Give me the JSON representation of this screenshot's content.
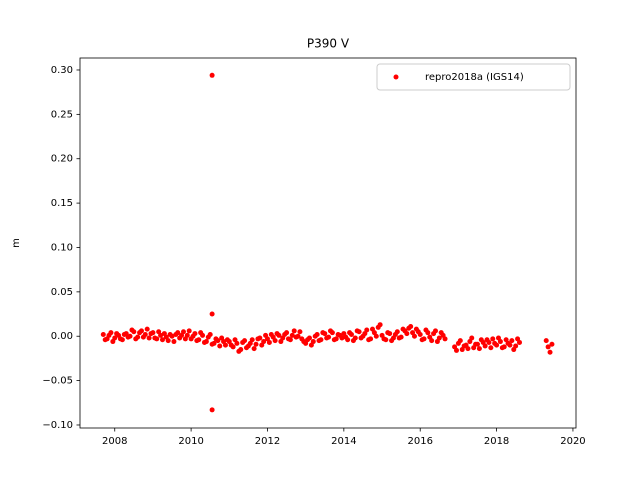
{
  "chart_data": {
    "type": "scatter",
    "title": "P390 V",
    "ylabel": "m",
    "xlim": [
      2007.09,
      2020.08
    ],
    "ylim": [
      -0.1034,
      0.3135
    ],
    "xticks": [
      2008,
      2010,
      2012,
      2014,
      2016,
      2018,
      2020
    ],
    "yticks": [
      {
        "value": -0.1,
        "label": "−0.10"
      },
      {
        "value": -0.05,
        "label": "−0.05"
      },
      {
        "value": 0,
        "label": "0.00"
      },
      {
        "value": 0.05,
        "label": "0.05"
      },
      {
        "value": 0.1,
        "label": "0.10"
      },
      {
        "value": 0.15,
        "label": "0.15"
      },
      {
        "value": 0.2,
        "label": "0.20"
      },
      {
        "value": 0.25,
        "label": "0.25"
      },
      {
        "value": 0.3,
        "label": "0.30"
      }
    ],
    "grid": false,
    "legend": "upper right",
    "series": [
      {
        "name": "repro2018a (IGS14)",
        "color": "#ff0000",
        "x": [
          2007.7,
          2007.8,
          2007.9,
          2008.0,
          2008.1,
          2008.2,
          2008.3,
          2008.4,
          2008.5,
          2008.6,
          2008.7,
          2008.8,
          2008.9,
          2009.0,
          2009.1,
          2009.2,
          2009.3,
          2009.4,
          2009.5,
          2009.6,
          2009.7,
          2009.8,
          2009.9,
          2010.0,
          2010.1,
          2010.2,
          2010.3,
          2010.4,
          2010.5,
          2010.6,
          2010.7,
          2010.8,
          2010.9,
          2011.0,
          2011.1,
          2011.2,
          2011.3,
          2011.4,
          2011.5,
          2011.6,
          2011.7,
          2011.8,
          2011.9,
          2012.0,
          2012.1,
          2012.2,
          2012.3,
          2012.4,
          2012.5,
          2012.6,
          2012.7,
          2012.8,
          2012.9,
          2013.0,
          2013.1,
          2013.2,
          2013.3,
          2013.4,
          2013.5,
          2013.6,
          2013.7,
          2013.8,
          2013.9,
          2014.0,
          2014.1,
          2014.2,
          2014.3,
          2014.4,
          2014.5,
          2014.6,
          2014.7,
          2014.8,
          2014.9,
          2015.0,
          2015.1,
          2015.2,
          2015.3,
          2015.4,
          2015.5,
          2015.6,
          2015.7,
          2015.8,
          2015.9,
          2016.0,
          2016.1,
          2016.2,
          2016.3,
          2016.4,
          2016.5,
          2016.6,
          2016.9,
          2017.0,
          2017.1,
          2017.2,
          2017.3,
          2017.4,
          2017.5,
          2017.6,
          2017.7,
          2017.8,
          2017.9,
          2018.0,
          2018.1,
          2018.2,
          2018.3,
          2018.4,
          2018.5,
          2018.6,
          2019.3,
          2019.35,
          2019.4,
          2019.45,
          2010.55,
          2010.55,
          2010.55,
          2007.75,
          2007.85,
          2007.95,
          2008.05,
          2008.15,
          2008.25,
          2008.35,
          2008.45,
          2008.55,
          2008.65,
          2008.75,
          2008.85,
          2008.95,
          2009.05,
          2009.15,
          2009.25,
          2009.35,
          2009.45,
          2009.55,
          2009.65,
          2009.75,
          2009.85,
          2009.95,
          2010.05,
          2010.15,
          2010.25,
          2010.35,
          2010.45,
          2010.55,
          2010.65,
          2010.75,
          2010.85,
          2010.95,
          2011.05,
          2011.15,
          2011.25,
          2011.35,
          2011.45,
          2011.55,
          2011.65,
          2011.75,
          2011.85,
          2011.95,
          2012.05,
          2012.15,
          2012.25,
          2012.35,
          2012.45,
          2012.55,
          2012.65,
          2012.75,
          2012.85,
          2012.95,
          2013.05,
          2013.15,
          2013.25,
          2013.35,
          2013.45,
          2013.55,
          2013.65,
          2013.75,
          2013.85,
          2013.95,
          2014.05,
          2014.15,
          2014.25,
          2014.35,
          2014.45,
          2014.55,
          2014.65,
          2014.75,
          2014.85,
          2014.95,
          2015.05,
          2015.15,
          2015.25,
          2015.35,
          2015.45,
          2015.55,
          2015.65,
          2015.75,
          2015.85,
          2015.95,
          2016.05,
          2016.15,
          2016.25,
          2016.35,
          2016.45,
          2016.55,
          2016.65,
          2016.95,
          2017.05,
          2017.15,
          2017.25,
          2017.35,
          2017.45,
          2017.55,
          2017.65,
          2017.75,
          2017.85,
          2017.95,
          2018.05,
          2018.15,
          2018.25,
          2018.35,
          2018.45,
          2018.55
        ],
        "values": [
          0.002,
          -0.003,
          0.004,
          -0.002,
          0.001,
          -0.004,
          0.003,
          0.0,
          0.005,
          -0.001,
          0.006,
          0.002,
          -0.002,
          0.004,
          -0.003,
          0.001,
          0.003,
          -0.005,
          0.0,
          0.002,
          -0.002,
          0.005,
          0.001,
          -0.003,
          0.003,
          -0.004,
          0.001,
          -0.006,
          0.002,
          -0.008,
          -0.005,
          -0.002,
          -0.01,
          -0.006,
          -0.012,
          -0.008,
          -0.015,
          -0.005,
          -0.011,
          -0.004,
          -0.009,
          -0.002,
          -0.006,
          -0.003,
          0.002,
          -0.005,
          0.001,
          -0.002,
          0.004,
          -0.004,
          0.006,
          0.0,
          -0.003,
          -0.008,
          -0.002,
          -0.006,
          0.002,
          -0.004,
          0.003,
          -0.001,
          0.004,
          -0.003,
          0.001,
          0.003,
          -0.004,
          0.002,
          -0.002,
          0.005,
          0.0,
          0.007,
          -0.003,
          0.004,
          0.01,
          0.001,
          -0.004,
          0.003,
          -0.002,
          0.005,
          -0.001,
          0.006,
          0.009,
          0.004,
          0.008,
          0.002,
          -0.003,
          0.004,
          -0.005,
          0.006,
          -0.002,
          0.001,
          -0.012,
          -0.008,
          -0.015,
          -0.01,
          -0.006,
          -0.013,
          -0.009,
          -0.004,
          -0.011,
          -0.007,
          -0.003,
          -0.01,
          -0.006,
          -0.012,
          -0.008,
          -0.005,
          -0.011,
          -0.007,
          -0.005,
          -0.012,
          -0.018,
          -0.009,
          0.294,
          0.025,
          -0.083,
          -0.004,
          0.001,
          -0.006,
          0.003,
          -0.003,
          0.002,
          -0.001,
          0.007,
          -0.003,
          0.004,
          -0.001,
          0.008,
          0.003,
          -0.002,
          0.005,
          -0.004,
          -0.001,
          0.002,
          -0.006,
          0.004,
          0.001,
          -0.003,
          0.006,
          0.0,
          -0.005,
          0.004,
          -0.007,
          -0.001,
          -0.009,
          -0.003,
          -0.011,
          -0.006,
          -0.004,
          -0.01,
          -0.004,
          -0.017,
          -0.007,
          -0.013,
          -0.008,
          -0.014,
          -0.003,
          -0.01,
          0.001,
          -0.007,
          -0.001,
          0.003,
          -0.006,
          0.002,
          -0.003,
          0.001,
          -0.001,
          0.005,
          -0.006,
          -0.004,
          -0.01,
          0.0,
          -0.005,
          0.004,
          -0.002,
          0.006,
          -0.004,
          0.002,
          -0.002,
          -0.001,
          0.004,
          -0.005,
          0.006,
          -0.002,
          0.003,
          -0.004,
          0.008,
          0.0,
          0.013,
          -0.003,
          0.004,
          -0.005,
          0.002,
          -0.002,
          0.008,
          0.003,
          0.011,
          0.0,
          0.005,
          -0.004,
          0.007,
          -0.001,
          0.003,
          -0.006,
          0.004,
          -0.003,
          -0.016,
          -0.005,
          -0.011,
          -0.014,
          -0.002,
          -0.009,
          -0.014,
          -0.007,
          -0.004,
          -0.013,
          -0.008,
          -0.002,
          -0.013,
          -0.004,
          -0.01,
          -0.015,
          -0.003
        ]
      }
    ]
  }
}
